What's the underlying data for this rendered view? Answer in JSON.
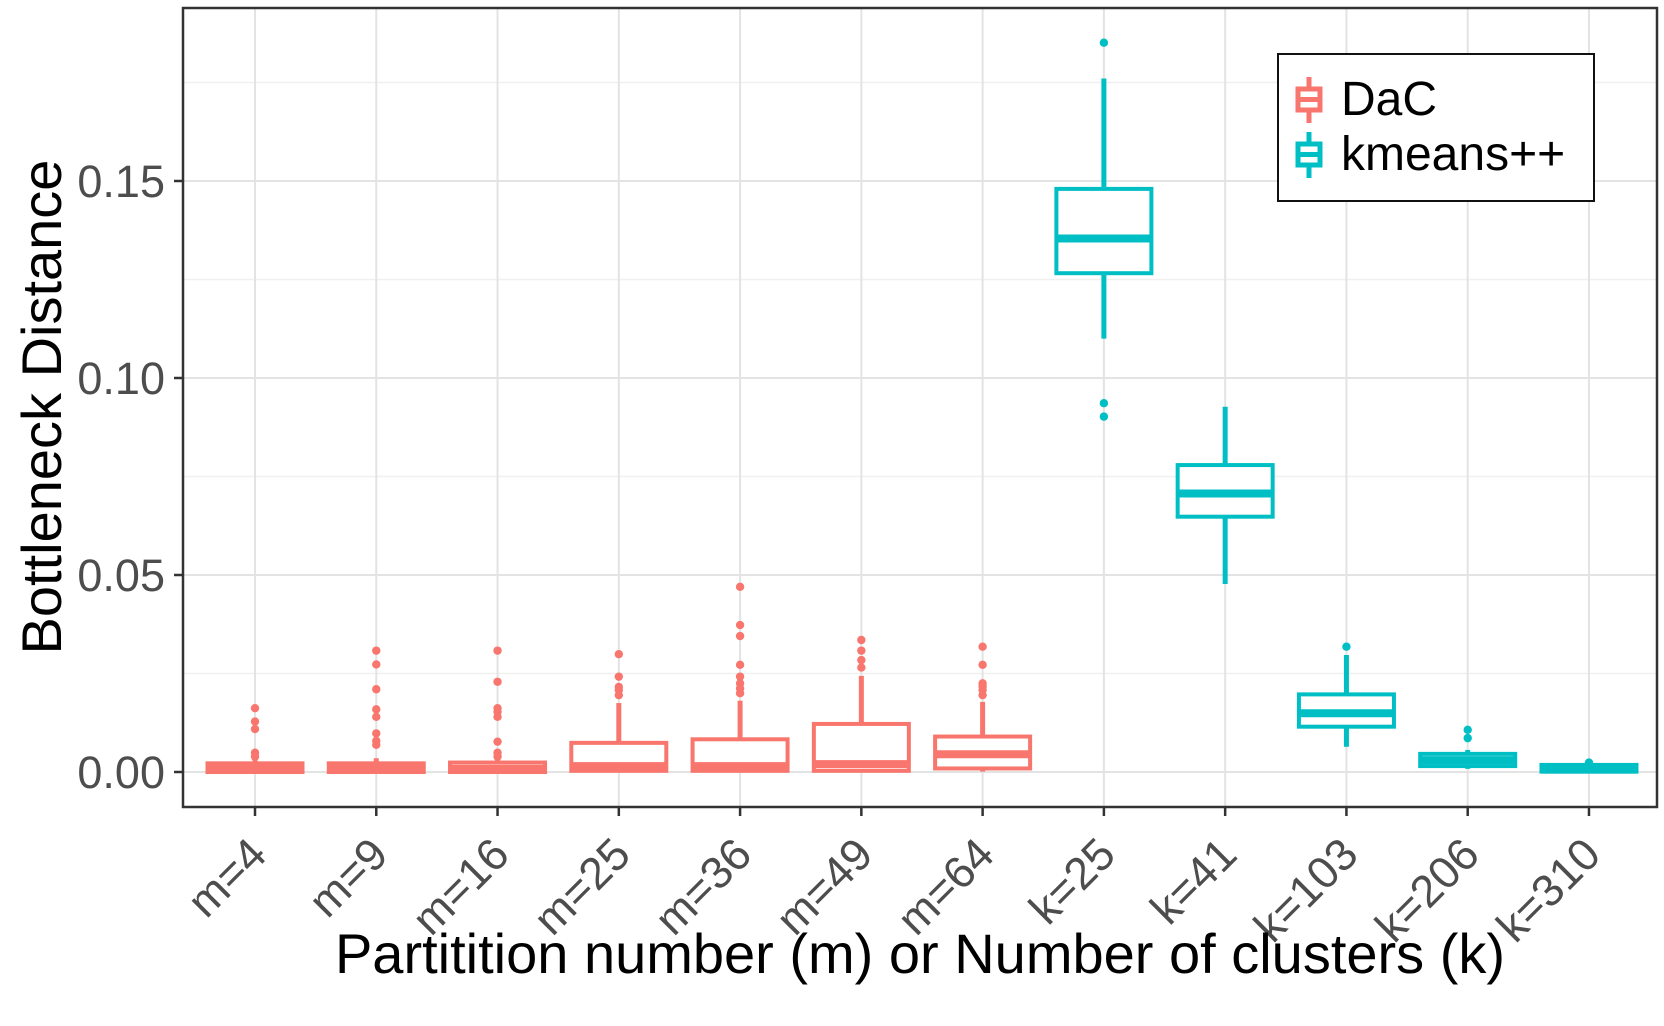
{
  "chart_data": {
    "type": "boxplot",
    "title": "",
    "xlabel": "Partitition number (m) or Number of clusters (k)",
    "ylabel": "Bottleneck Distance",
    "categories": [
      "m=4",
      "m=9",
      "m=16",
      "m=25",
      "m=36",
      "m=49",
      "m=64",
      "k=25",
      "k=41",
      "k=103",
      "k=206",
      "k=310"
    ],
    "y_ticks": [
      {
        "value": 0.0,
        "label": "0.00"
      },
      {
        "value": 0.05,
        "label": "0.05"
      },
      {
        "value": 0.1,
        "label": "0.10"
      },
      {
        "value": 0.15,
        "label": "0.15"
      }
    ],
    "minor_gridlines": [
      0.025,
      0.075,
      0.125,
      0.175
    ],
    "ylim": [
      -0.0089,
      0.1939
    ],
    "grid": "major-and-minor-horizontal, major-vertical-at-categories",
    "legend": {
      "position": "top-right-inside",
      "entries": [
        {
          "label": "DaC",
          "color": "#F8766D"
        },
        {
          "label": "kmeans++",
          "color": "#00BFC4"
        }
      ]
    },
    "boxes": [
      {
        "category": "m=4",
        "series": "DaC",
        "whisker_low": 0.0,
        "q1": 0.0,
        "median": 0.0008,
        "q3": 0.0022,
        "whisker_high": 0.0032,
        "outliers": [
          0.0039,
          0.0049,
          0.0109,
          0.0128,
          0.0162
        ]
      },
      {
        "category": "m=9",
        "series": "DaC",
        "whisker_low": 0.0,
        "q1": 0.0,
        "median": 0.0008,
        "q3": 0.0022,
        "whisker_high": 0.0035,
        "outliers": [
          0.0069,
          0.0079,
          0.0098,
          0.014,
          0.0159,
          0.021,
          0.0273,
          0.0308
        ]
      },
      {
        "category": "m=16",
        "series": "DaC",
        "whisker_low": 0.0,
        "q1": 0.0,
        "median": 0.0008,
        "q3": 0.0024,
        "whisker_high": 0.0038,
        "outliers": [
          0.0039,
          0.0049,
          0.0077,
          0.014,
          0.0153,
          0.0162,
          0.0229,
          0.0308
        ]
      },
      {
        "category": "m=25",
        "series": "DaC",
        "whisker_low": 0.0,
        "q1": 0.0003,
        "median": 0.0015,
        "q3": 0.0074,
        "whisker_high": 0.0175,
        "outliers": [
          0.0195,
          0.0208,
          0.0216,
          0.0242,
          0.0299
        ]
      },
      {
        "category": "m=36",
        "series": "DaC",
        "whisker_low": 0.0,
        "q1": 0.0003,
        "median": 0.0015,
        "q3": 0.0083,
        "whisker_high": 0.0181,
        "outliers": [
          0.02,
          0.0212,
          0.0225,
          0.0242,
          0.0272,
          0.0345,
          0.0373,
          0.047
        ]
      },
      {
        "category": "m=49",
        "series": "DaC",
        "whisker_low": 0.0,
        "q1": 0.0003,
        "median": 0.002,
        "q3": 0.0122,
        "whisker_high": 0.0244,
        "outliers": [
          0.0265,
          0.0284,
          0.0308,
          0.0335
        ]
      },
      {
        "category": "m=64",
        "series": "DaC",
        "whisker_low": 0.0001,
        "q1": 0.0009,
        "median": 0.0045,
        "q3": 0.009,
        "whisker_high": 0.0178,
        "outliers": [
          0.0195,
          0.0208,
          0.0217,
          0.0225,
          0.0272,
          0.0318
        ]
      },
      {
        "category": "k=25",
        "series": "kmeans++",
        "whisker_low": 0.11,
        "q1": 0.1266,
        "median": 0.1354,
        "q3": 0.148,
        "whisker_high": 0.176,
        "outliers": [
          0.0902,
          0.0936,
          0.1851
        ]
      },
      {
        "category": "k=41",
        "series": "kmeans++",
        "whisker_low": 0.0477,
        "q1": 0.0648,
        "median": 0.0707,
        "q3": 0.0779,
        "whisker_high": 0.0927,
        "outliers": []
      },
      {
        "category": "k=103",
        "series": "kmeans++",
        "whisker_low": 0.0064,
        "q1": 0.0115,
        "median": 0.0149,
        "q3": 0.0197,
        "whisker_high": 0.0297,
        "outliers": [
          0.0318
        ]
      },
      {
        "category": "k=206",
        "series": "kmeans++",
        "whisker_low": 0.0008,
        "q1": 0.0015,
        "median": 0.003,
        "q3": 0.0046,
        "whisker_high": 0.0056,
        "outliers": [
          0.0086,
          0.0107
        ]
      },
      {
        "category": "k=310",
        "series": "kmeans++",
        "whisker_low": 0.0,
        "q1": 0.0001,
        "median": 0.0006,
        "q3": 0.0018,
        "whisker_high": 0.0019,
        "outliers": [
          0.0024
        ]
      }
    ]
  },
  "colors": {
    "dac": "#F8766D",
    "kmeans": "#00BFC4",
    "axis_text": "#4D4D4D",
    "panel_border": "#333333",
    "major_grid": "#E3E3E3",
    "minor_grid": "#F0F0F0",
    "background": "#FFFFFF"
  }
}
